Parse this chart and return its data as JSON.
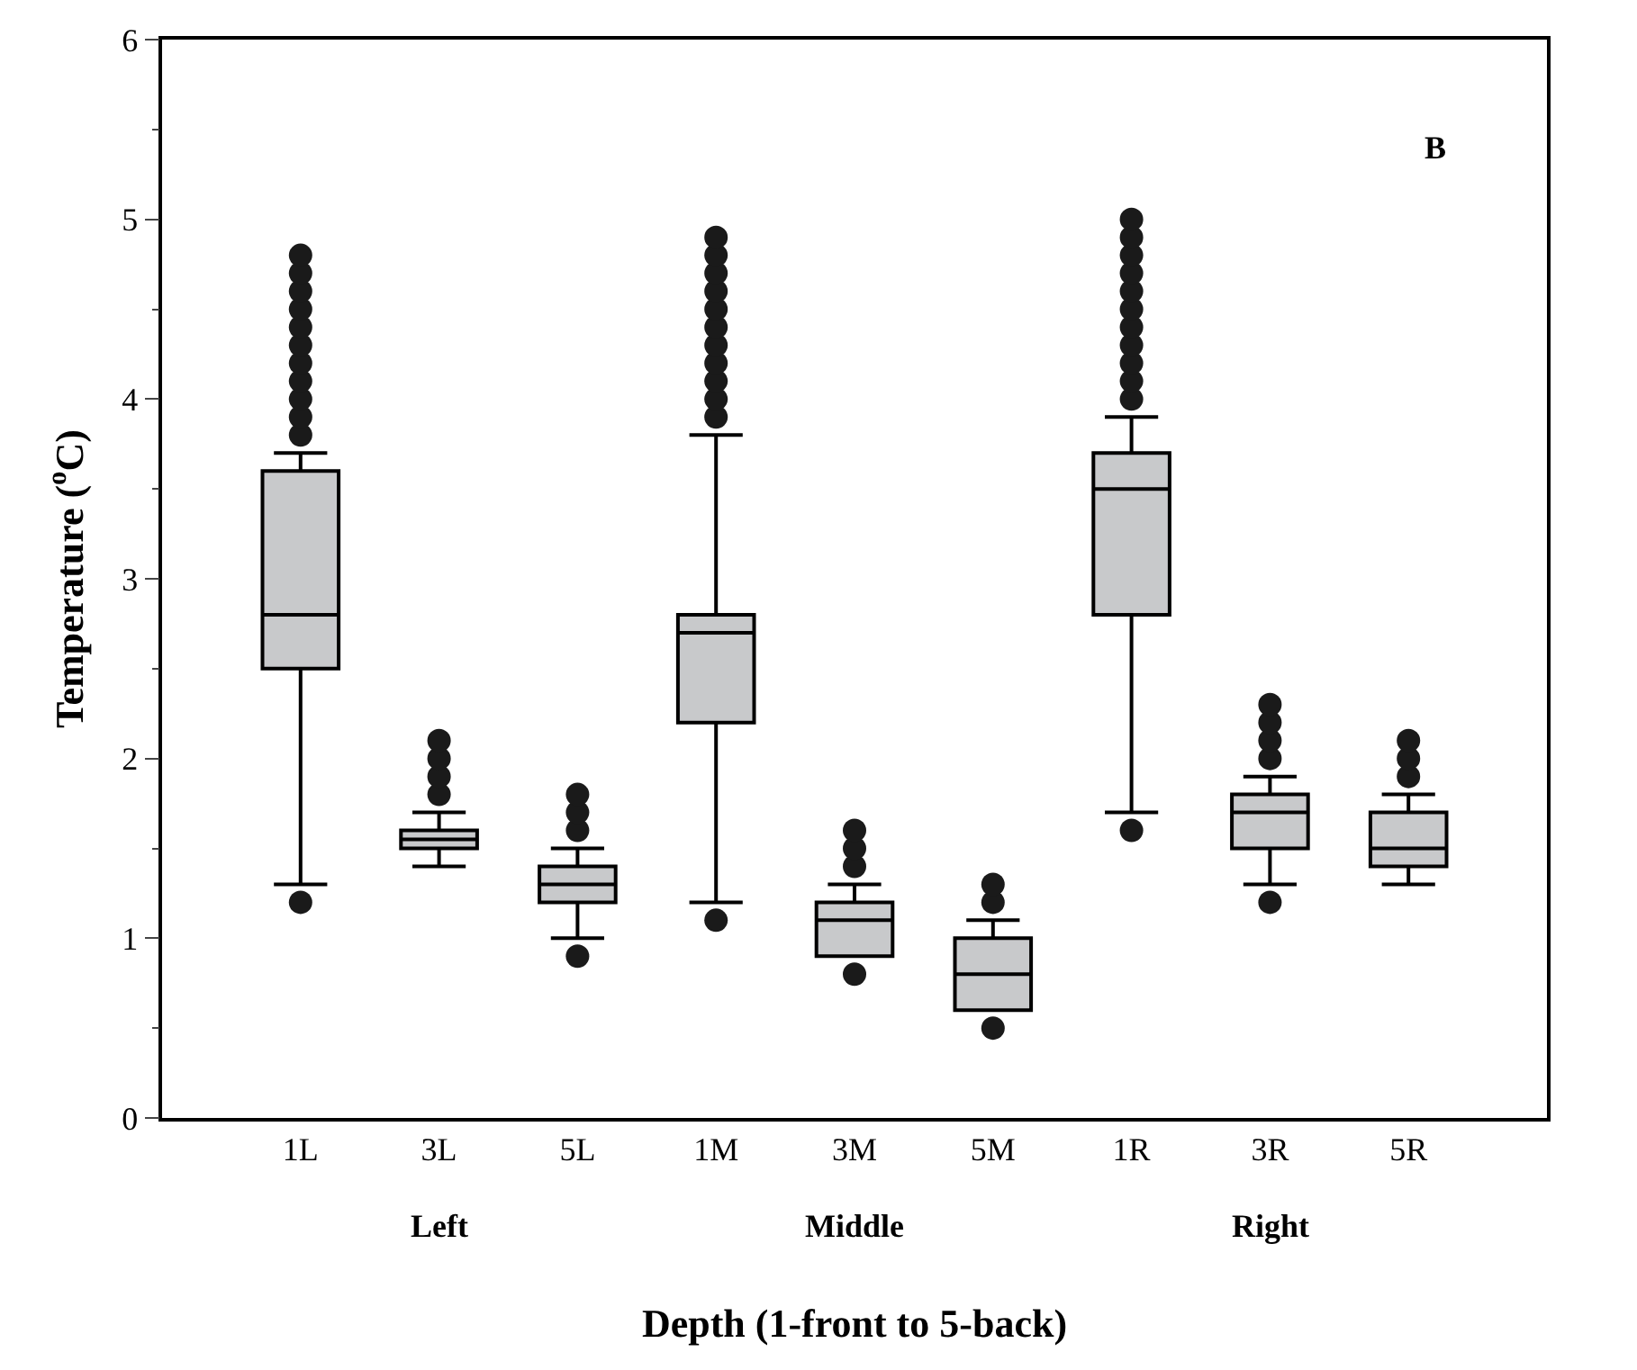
{
  "chart_data": {
    "type": "box",
    "categories": [
      "1L",
      "3L",
      "5L",
      "1M",
      "3M",
      "5M",
      "1R",
      "3R",
      "5R"
    ],
    "boxes": [
      {
        "low": 1.3,
        "q1": 2.5,
        "median": 2.8,
        "q3": 3.6,
        "high": 3.7,
        "outliers": [
          1.2,
          3.8,
          3.9,
          4.0,
          4.1,
          4.2,
          4.3,
          4.4,
          4.5,
          4.6,
          4.7,
          4.8
        ]
      },
      {
        "low": 1.4,
        "q1": 1.5,
        "median": 1.55,
        "q3": 1.6,
        "high": 1.7,
        "outliers": [
          1.8,
          1.9,
          2.0,
          2.1
        ]
      },
      {
        "low": 1.0,
        "q1": 1.2,
        "median": 1.3,
        "q3": 1.4,
        "high": 1.5,
        "outliers": [
          0.9,
          1.6,
          1.7,
          1.8
        ]
      },
      {
        "low": 1.2,
        "q1": 2.2,
        "median": 2.7,
        "q3": 2.8,
        "high": 3.8,
        "outliers": [
          1.1,
          3.9,
          4.0,
          4.1,
          4.2,
          4.3,
          4.4,
          4.5,
          4.6,
          4.7,
          4.8,
          4.9
        ]
      },
      {
        "low": 0.9,
        "q1": 0.9,
        "median": 1.1,
        "q3": 1.2,
        "high": 1.3,
        "outliers": [
          0.8,
          1.4,
          1.5,
          1.6
        ]
      },
      {
        "low": 0.6,
        "q1": 0.6,
        "median": 0.8,
        "q3": 1.0,
        "high": 1.1,
        "outliers": [
          0.5,
          1.2,
          1.3
        ]
      },
      {
        "low": 1.7,
        "q1": 2.8,
        "median": 3.5,
        "q3": 3.7,
        "high": 3.9,
        "outliers": [
          1.6,
          4.0,
          4.1,
          4.2,
          4.3,
          4.4,
          4.5,
          4.6,
          4.7,
          4.8,
          4.9,
          5.0
        ]
      },
      {
        "low": 1.3,
        "q1": 1.5,
        "median": 1.7,
        "q3": 1.8,
        "high": 1.9,
        "outliers": [
          1.2,
          2.0,
          2.1,
          2.2,
          2.3
        ]
      },
      {
        "low": 1.3,
        "q1": 1.4,
        "median": 1.5,
        "q3": 1.7,
        "high": 1.8,
        "outliers": [
          1.9,
          2.0,
          2.1
        ]
      }
    ],
    "color": "#c8c9cb",
    "ylim": [
      0,
      6
    ],
    "yticks": [
      0,
      1,
      2,
      3,
      4,
      5,
      6
    ],
    "xlabel": "Depth (1-front to 5-back)",
    "ylabel": "Temperature ($^{o}$C)",
    "annotations": [
      "B",
      "Left",
      "Middle",
      "Right"
    ],
    "marker": "circle"
  }
}
